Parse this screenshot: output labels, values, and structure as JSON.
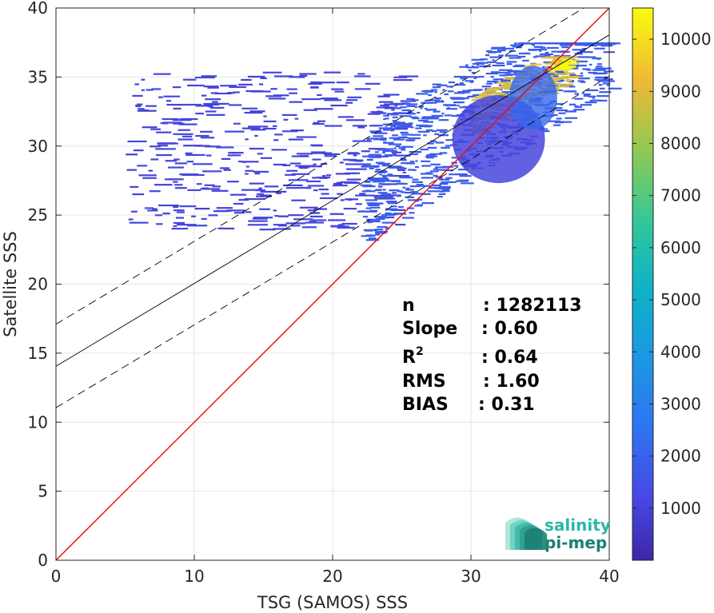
{
  "chart_data": {
    "type": "heatmap",
    "title": "",
    "xlabel": "TSG (SAMOS) SSS",
    "ylabel": "Satellite SSS",
    "xlim": [
      0,
      40
    ],
    "ylim": [
      0,
      40
    ],
    "xticks": [
      "0",
      "10",
      "20",
      "30",
      "40"
    ],
    "yticks": [
      "0",
      "5",
      "10",
      "15",
      "20",
      "25",
      "30",
      "35",
      "40"
    ],
    "grid": true,
    "colormap": "parula",
    "colorbar": {
      "range": [
        1,
        10600
      ],
      "ticks": [
        "1000",
        "2000",
        "3000",
        "4000",
        "5000",
        "6000",
        "7000",
        "8000",
        "9000",
        "10000"
      ],
      "tick_values": [
        1000,
        2000,
        3000,
        4000,
        5000,
        6000,
        7000,
        8000,
        9000,
        10000
      ]
    },
    "density_regions": [
      {
        "x": [
          5,
          25
        ],
        "y": [
          24,
          35.5
        ],
        "level": 20
      },
      {
        "x": [
          22,
          40
        ],
        "y": [
          22,
          37.5
        ],
        "level": 300
      },
      {
        "x": [
          30,
          37
        ],
        "y": [
          31,
          36.5
        ],
        "level": 2500
      },
      {
        "x": [
          35.5,
          36.8
        ],
        "y": [
          35.6,
          36.6
        ],
        "level": 9500
      }
    ],
    "lines": [
      {
        "name": "identity",
        "slope": 1.0,
        "intercept": 0,
        "color": "#ff0000",
        "style": "solid"
      },
      {
        "name": "regression",
        "slope": 0.6,
        "intercept": 14.05,
        "color": "#000000",
        "style": "solid"
      },
      {
        "name": "regression-upper",
        "slope": 0.6,
        "intercept": 17.1,
        "color": "#000000",
        "style": "dashed"
      },
      {
        "name": "regression-lower",
        "slope": 0.6,
        "intercept": 11.05,
        "color": "#000000",
        "style": "dashed"
      }
    ],
    "stats": [
      {
        "label": "n",
        "value": ": 1282113"
      },
      {
        "label": "Slope",
        "value": ": 0.60"
      },
      {
        "label": "R",
        "sup": "2",
        "value": ": 0.64"
      },
      {
        "label": "RMS",
        "value": ": 1.60"
      },
      {
        "label": "BIAS",
        "value": ": 0.31"
      }
    ]
  },
  "logo": {
    "line1": "salinity",
    "line2": "pi-mep",
    "color1": "#2bb7a8",
    "color2": "#1a7f74"
  }
}
